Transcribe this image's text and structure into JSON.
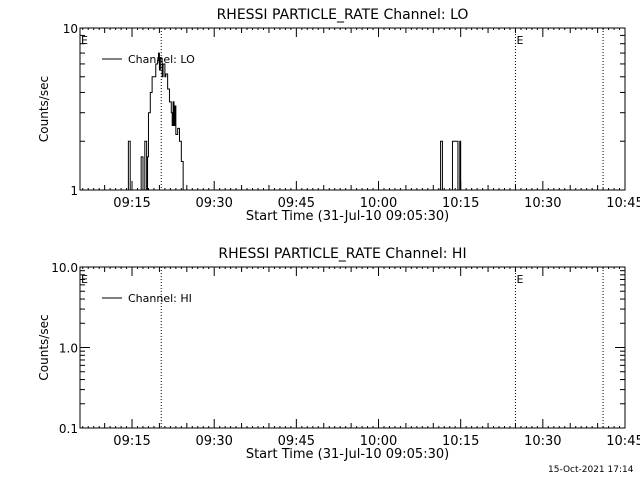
{
  "chart_data": [
    {
      "type": "line",
      "title": "RHESSI PARTICLE_RATE Channel: LO",
      "xlabel": "Start Time (31-Jul-10 09:05:30)",
      "ylabel": "Counts/sec",
      "xlim": [
        "09:05:30",
        "10:45:00"
      ],
      "xticks": [
        "09:15",
        "09:30",
        "09:45",
        "10:00",
        "10:15",
        "10:30",
        "10:45"
      ],
      "yscale": "log",
      "ylim": [
        1,
        10
      ],
      "yticks": [
        "1",
        "10"
      ],
      "legend": {
        "placement": "top-left",
        "entries": [
          "Channel: LO"
        ]
      },
      "markers": [
        {
          "time": "09:20:20",
          "label": ""
        },
        {
          "time": "10:25:00",
          "label": "E"
        },
        {
          "time": "10:41:00",
          "label": ""
        }
      ],
      "left_edge_label": "E",
      "series": [
        {
          "name": "Channel: LO",
          "points": [
            [
              "09:14:00",
              1
            ],
            [
              "09:14:20",
              2
            ],
            [
              "09:14:40",
              1
            ],
            [
              "09:16:20",
              1
            ],
            [
              "09:16:40",
              1.6
            ],
            [
              "09:17:00",
              1
            ],
            [
              "09:17:20",
              2
            ],
            [
              "09:17:40",
              1
            ],
            [
              "09:17:50",
              1.6
            ],
            [
              "09:18:00",
              3
            ],
            [
              "09:18:20",
              4
            ],
            [
              "09:18:40",
              5
            ],
            [
              "09:19:00",
              5
            ],
            [
              "09:19:20",
              6
            ],
            [
              "09:19:40",
              6.3
            ],
            [
              "09:19:50",
              7
            ],
            [
              "09:20:00",
              5.5
            ],
            [
              "09:20:10",
              6.5
            ],
            [
              "09:20:30",
              5
            ],
            [
              "09:20:40",
              6
            ],
            [
              "09:21:00",
              5
            ],
            [
              "09:21:10",
              5.2
            ],
            [
              "09:21:30",
              4.2
            ],
            [
              "09:21:50",
              3.5
            ],
            [
              "09:22:10",
              3
            ],
            [
              "09:22:20",
              2.5
            ],
            [
              "09:22:30",
              3.5
            ],
            [
              "09:22:40",
              2.5
            ],
            [
              "09:22:50",
              3.3
            ],
            [
              "09:23:00",
              2.2
            ],
            [
              "09:23:20",
              2.4
            ],
            [
              "09:23:40",
              2
            ],
            [
              "09:24:00",
              1.5
            ],
            [
              "09:24:20",
              1
            ],
            [
              "10:11:00",
              1
            ],
            [
              "10:11:20",
              2
            ],
            [
              "10:11:40",
              1
            ],
            [
              "10:13:20",
              1
            ],
            [
              "10:13:30",
              2
            ],
            [
              "10:14:20",
              2
            ],
            [
              "10:14:30",
              1
            ],
            [
              "10:14:50",
              2
            ],
            [
              "10:15:00",
              1
            ]
          ]
        }
      ]
    },
    {
      "type": "line",
      "title": "RHESSI PARTICLE_RATE Channel: HI",
      "xlabel": "Start Time (31-Jul-10 09:05:30)",
      "ylabel": "Counts/sec",
      "xlim": [
        "09:05:30",
        "10:45:00"
      ],
      "xticks": [
        "09:15",
        "09:30",
        "09:45",
        "10:00",
        "10:15",
        "10:30",
        "10:45"
      ],
      "yscale": "log",
      "ylim": [
        0.1,
        10
      ],
      "yticks": [
        "0.1",
        "1.0",
        "10.0"
      ],
      "legend": {
        "placement": "top-left",
        "entries": [
          "Channel: HI"
        ]
      },
      "markers": [
        {
          "time": "09:20:20",
          "label": ""
        },
        {
          "time": "10:25:00",
          "label": "E"
        },
        {
          "time": "10:41:00",
          "label": ""
        }
      ],
      "left_edge_label": "E",
      "series": [
        {
          "name": "Channel: HI",
          "points": []
        }
      ]
    }
  ],
  "footer": {
    "timestamp": "15-Oct-2021 17:14"
  }
}
